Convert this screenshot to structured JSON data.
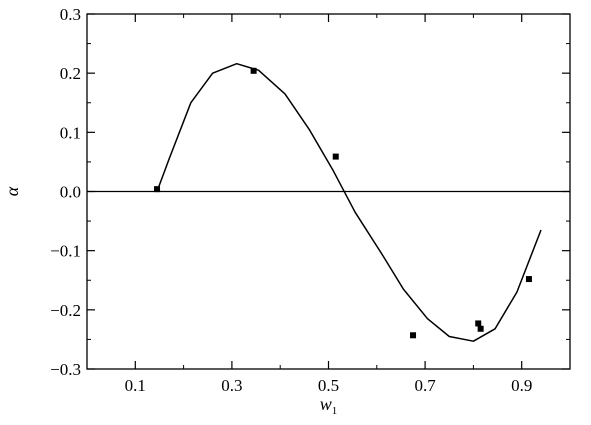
{
  "chart_data": {
    "type": "line",
    "xlabel": "w",
    "xlabel_subscript": "1",
    "ylabel": "α",
    "xlim": [
      0.0,
      1.0
    ],
    "ylim": [
      -0.3,
      0.3
    ],
    "x_ticks": [
      0.1,
      0.3,
      0.5,
      0.7,
      0.9
    ],
    "x_tick_labels": [
      "0.1",
      "0.3",
      "0.5",
      "0.7",
      "0.9"
    ],
    "x_minor_ticks": [
      0.2,
      0.4,
      0.6,
      0.8
    ],
    "y_ticks": [
      0.3,
      0.2,
      0.1,
      0.0,
      -0.1,
      -0.2,
      -0.3
    ],
    "y_tick_labels": [
      "0.3",
      "0.2",
      "0.1",
      "0.0",
      "−0.1",
      "−0.2",
      "−0.3"
    ],
    "reference_line_y": 0.0,
    "grid": false,
    "series": [
      {
        "style": "line",
        "color": "#000000",
        "x": [
          0.145,
          0.17,
          0.215,
          0.26,
          0.31,
          0.355,
          0.41,
          0.46,
          0.51,
          0.555,
          0.61,
          0.655,
          0.705,
          0.75,
          0.8,
          0.845,
          0.89,
          0.94
        ],
        "y": [
          0.0,
          0.055,
          0.15,
          0.2,
          0.216,
          0.205,
          0.165,
          0.105,
          0.035,
          -0.035,
          -0.105,
          -0.165,
          -0.215,
          -0.245,
          -0.253,
          -0.232,
          -0.17,
          -0.065
        ]
      },
      {
        "style": "markers",
        "marker": "square",
        "color": "#000000",
        "x": [
          0.145,
          0.345,
          0.515,
          0.675,
          0.81,
          0.815,
          0.915
        ],
        "y": [
          0.004,
          0.204,
          0.059,
          -0.243,
          -0.223,
          -0.232,
          -0.148
        ]
      }
    ]
  }
}
